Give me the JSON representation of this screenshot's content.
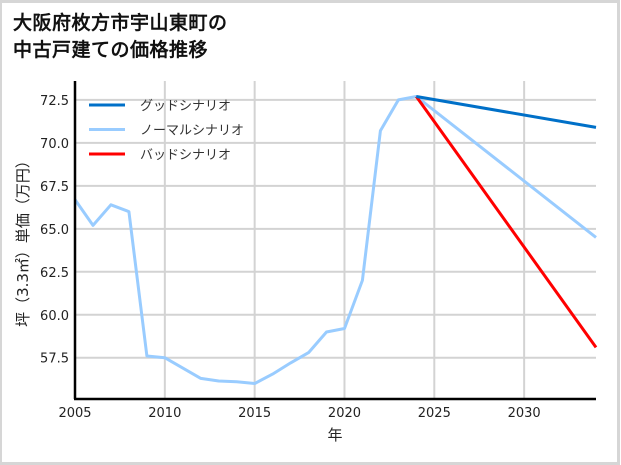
{
  "title": {
    "line1": "大阪府枚方市宇山東町の",
    "line2": "中古戸建ての価格推移"
  },
  "colors": {
    "good": "#0070c8",
    "normal": "#99ccff",
    "bad": "#ff0000",
    "grid": "#d3d3d3",
    "axis": "#000000"
  },
  "chart_data": {
    "type": "line",
    "title": "大阪府枚方市宇山東町の中古戸建ての価格推移",
    "xlabel": "年",
    "ylabel": "坪（3.3㎡）単価（万円）",
    "xlim": [
      2005,
      2034
    ],
    "ylim": [
      55.1,
      73.6
    ],
    "xticks": [
      2005,
      2010,
      2015,
      2020,
      2025,
      2030
    ],
    "yticks": [
      57.5,
      60.0,
      62.5,
      65.0,
      67.5,
      70.0,
      72.5
    ],
    "ytick_labels": [
      "57.5",
      "60.0",
      "62.5",
      "65.0",
      "67.5",
      "70.0",
      "72.5"
    ],
    "grid": true,
    "legend_position": "upper left",
    "series": [
      {
        "name": "グッドシナリオ",
        "key": "good",
        "x": [
          2024,
          2034
        ],
        "y": [
          72.7,
          70.9
        ]
      },
      {
        "name": "ノーマルシナリオ",
        "key": "normal",
        "x": [
          2005,
          2006,
          2007,
          2008,
          2009,
          2010,
          2011,
          2012,
          2013,
          2014,
          2015,
          2016,
          2017,
          2018,
          2019,
          2020,
          2021,
          2022,
          2023,
          2024,
          2034
        ],
        "y": [
          66.7,
          65.2,
          66.4,
          66.0,
          57.6,
          57.5,
          56.9,
          56.3,
          56.15,
          56.1,
          56.0,
          56.55,
          57.2,
          57.8,
          59.0,
          59.2,
          62.0,
          70.7,
          72.5,
          72.7,
          64.5
        ]
      },
      {
        "name": "バッドシナリオ",
        "key": "bad",
        "x": [
          2024,
          2034
        ],
        "y": [
          72.7,
          58.1
        ]
      }
    ]
  },
  "legend": {
    "items": [
      {
        "label": "グッドシナリオ",
        "key": "good"
      },
      {
        "label": "ノーマルシナリオ",
        "key": "normal"
      },
      {
        "label": "バッドシナリオ",
        "key": "bad"
      }
    ]
  },
  "axes": {
    "xlabel": "年",
    "ylabel": "坪（3.3㎡）単価（万円）"
  }
}
